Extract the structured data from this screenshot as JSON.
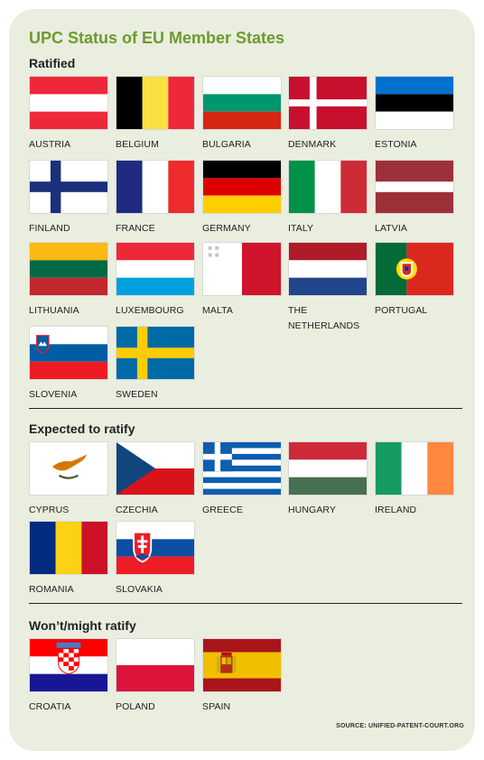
{
  "title": "UPC Status of EU Member States",
  "sections": {
    "ratified": {
      "heading": "Ratified",
      "countries": [
        "AUSTRIA",
        "BELGIUM",
        "BULGARIA",
        "DENMARK",
        "ESTONIA",
        "FINLAND",
        "FRANCE",
        "GERMANY",
        "ITALY",
        "LATVIA",
        "LITHUANIA",
        "LUXEMBOURG",
        "MALTA",
        "THE NETHERLANDS",
        "PORTUGAL",
        "SLOVENIA",
        "SWEDEN"
      ]
    },
    "expected": {
      "heading": "Expected to ratify",
      "countries": [
        "CYPRUS",
        "CZECHIA",
        "GREECE",
        "HUNGARY",
        "IRELAND",
        "ROMANIA",
        "SLOVAKIA"
      ]
    },
    "wont": {
      "heading": "Won’t/might ratify",
      "countries": [
        "CROATIA",
        "POLAND",
        "SPAIN"
      ]
    }
  },
  "source": "SOURCE: UNIFIED-PATENT-COURT.ORG",
  "colors": {
    "card_background": "#e9eedf",
    "title_green": "#6f9a2c"
  }
}
